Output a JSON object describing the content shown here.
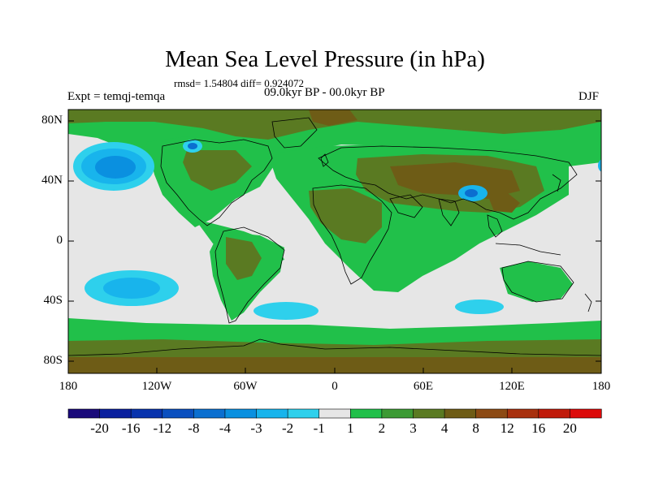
{
  "title": "Mean Sea Level Pressure (in hPa)",
  "stats": "rmsd= 1.54804 diff= 0.924072",
  "experiment": "Expt = temqj-temqa",
  "period": "09.0kyr BP - 00.0kyr BP",
  "season": "DJF",
  "lat_labels": [
    "80N",
    "40N",
    "0",
    "40S",
    "80S"
  ],
  "lon_labels": [
    "180",
    "120W",
    "60W",
    "0",
    "60E",
    "120E",
    "180"
  ],
  "colorbar": {
    "labels": [
      "-20",
      "-16",
      "-12",
      "-8",
      "-4",
      "-3",
      "-2",
      "-1",
      "1",
      "2",
      "3",
      "4",
      "8",
      "12",
      "16",
      "20"
    ],
    "colors": [
      "#1a0a7a",
      "#0a1f9e",
      "#0833ad",
      "#0a4fbf",
      "#0b6fd0",
      "#0a90e0",
      "#18b4ec",
      "#2ed0ec",
      "#e6e6e6",
      "#21c04a",
      "#3c9a34",
      "#5a7a22",
      "#6e5c16",
      "#8c4a14",
      "#a8300e",
      "#c01a0a",
      "#dc0a0a"
    ]
  },
  "colors": {
    "neutral": "#e6e6e6",
    "green": "#21c04a",
    "midgreen": "#3c9a34",
    "olive": "#5a7a22",
    "brown": "#6e5c16",
    "blue_light": "#2ed0ec",
    "blue_mid": "#18b4ec",
    "blue_dark": "#0a90e0",
    "blue_deep": "#0b6fd0"
  }
}
